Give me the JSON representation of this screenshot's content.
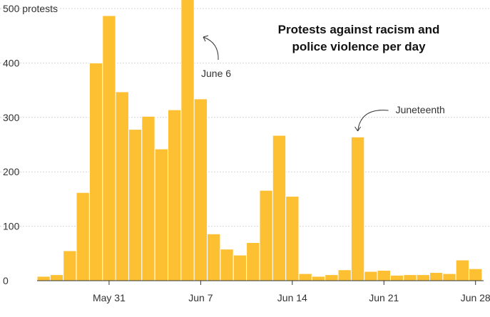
{
  "chart_data": {
    "type": "bar",
    "title_line1": "Protests against racism and",
    "title_line2": "police violence per day",
    "bar_color": "#FDC032",
    "ylim": [
      0,
      500
    ],
    "yticks": [
      0,
      100,
      200,
      300,
      400,
      500
    ],
    "ytick_labels": [
      "0",
      "100",
      "200",
      "300",
      "400",
      "500 protests"
    ],
    "grid": true,
    "categories": [
      "May 26",
      "May 27",
      "May 28",
      "May 29",
      "May 30",
      "May 31",
      "Jun 1",
      "Jun 2",
      "Jun 3",
      "Jun 4",
      "Jun 5",
      "Jun 6",
      "Jun 7",
      "Jun 8",
      "Jun 9",
      "Jun 10",
      "Jun 11",
      "Jun 12",
      "Jun 13",
      "Jun 14",
      "Jun 15",
      "Jun 16",
      "Jun 17",
      "Jun 18",
      "Jun 19",
      "Jun 20",
      "Jun 21",
      "Jun 22",
      "Jun 23",
      "Jun 24",
      "Jun 25",
      "Jun 26",
      "Jun 27",
      "Jun 28"
    ],
    "values": [
      8,
      11,
      55,
      162,
      400,
      487,
      347,
      278,
      302,
      242,
      314,
      520,
      334,
      86,
      58,
      47,
      70,
      166,
      267,
      155,
      13,
      8,
      11,
      20,
      264,
      17,
      19,
      10,
      11,
      11,
      15,
      13,
      38,
      22
    ],
    "x_ticks": [
      {
        "label": "May 31",
        "category": "May 31"
      },
      {
        "label": "Jun 7",
        "category": "Jun 7"
      },
      {
        "label": "Jun 14",
        "category": "Jun 14"
      },
      {
        "label": "Jun 21",
        "category": "Jun 21"
      },
      {
        "label": "Jun 28",
        "category": "Jun 28"
      }
    ],
    "annotations": [
      {
        "text": "June 6",
        "category": "Jun 6"
      },
      {
        "text": "Juneteenth",
        "category": "Jun 19"
      }
    ]
  }
}
